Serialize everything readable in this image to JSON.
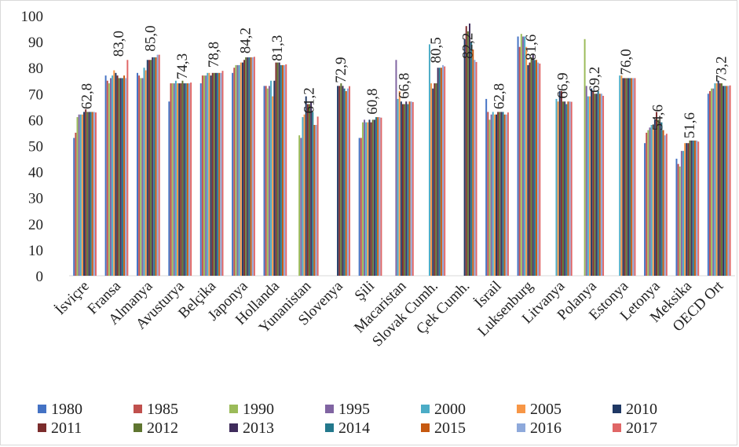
{
  "chart_data": {
    "type": "bar",
    "title": "",
    "xlabel": "",
    "ylabel": "",
    "ylim": [
      0,
      100
    ],
    "yticks": [
      0,
      10,
      20,
      30,
      40,
      50,
      60,
      70,
      80,
      90,
      100
    ],
    "grid": false,
    "legend_position": "bottom",
    "categories": [
      "İsviçre",
      "Fransa",
      "Almanya",
      "Avusturya",
      "Belçika",
      "Japonya",
      "Hollanda",
      "Yunanistan",
      "Slovenya",
      "Şili",
      "Macaristan",
      "Slovak Cumh.",
      "Çek Cumh.",
      "İsrail",
      "Luksenburg",
      "Litvanya",
      "Polanya",
      "Estonya",
      "Letonya",
      "Meksika",
      "OECD Ort"
    ],
    "data_labels": [
      "62,8",
      "83,0",
      "85,0",
      "74,3",
      "78,8",
      "84,2",
      "81,3",
      "61,2",
      "72,9",
      "60,8",
      "66,8",
      "80,5",
      "82,2",
      "62,8",
      "81,6",
      "66,9",
      "69,2",
      "76,0",
      "54,6",
      "51,6",
      "73,2"
    ],
    "series": [
      {
        "name": "1980",
        "color": "#4472C4",
        "values": [
          53,
          77,
          78,
          67,
          74,
          78,
          73,
          null,
          null,
          53,
          null,
          null,
          null,
          68,
          92,
          null,
          null,
          null,
          51,
          45,
          70
        ]
      },
      {
        "name": "1985",
        "color": "#C0504D",
        "values": [
          55,
          75,
          77,
          74,
          77,
          80,
          73,
          null,
          null,
          53,
          null,
          null,
          null,
          63,
          88,
          null,
          null,
          null,
          55,
          43,
          71
        ]
      },
      {
        "name": "1990",
        "color": "#9BBB59",
        "values": [
          61,
          74,
          76,
          74,
          77,
          81,
          72,
          54,
          null,
          59,
          null,
          null,
          null,
          60,
          93,
          null,
          91,
          null,
          56,
          42,
          72
        ]
      },
      {
        "name": "1995",
        "color": "#8064A2",
        "values": [
          62,
          76,
          76,
          74,
          77,
          81,
          73,
          53,
          null,
          60,
          83,
          null,
          null,
          62,
          92,
          null,
          73,
          null,
          57,
          48,
          72
        ]
      },
      {
        "name": "2000",
        "color": "#4BACC6",
        "values": [
          62,
          77,
          80,
          75,
          78,
          81,
          75,
          61,
          null,
          59,
          68,
          89,
          null,
          63,
          92,
          68,
          69,
          77,
          58,
          48,
          74
        ]
      },
      {
        "name": "2005",
        "color": "#F79646",
        "values": [
          62,
          79,
          79,
          74,
          78,
          82,
          69,
          62,
          null,
          59,
          71,
          74,
          null,
          62,
          88,
          67,
          69,
          77,
          58,
          51,
          74
        ]
      },
      {
        "name": "2010",
        "color": "#1F3864",
        "values": [
          63,
          78,
          83,
          74,
          77,
          82,
          75,
          69,
          73,
          60,
          67,
          72,
          91,
          62,
          81,
          71,
          72,
          76,
          60,
          51,
          75
        ]
      },
      {
        "name": "2011",
        "color": "#7B2C2C",
        "values": [
          64,
          77,
          83,
          74,
          78,
          83,
          82,
          66,
          73,
          59,
          66,
          74,
          96,
          63,
          82,
          71,
          71,
          76,
          63,
          51,
          74
        ]
      },
      {
        "name": "2012",
        "color": "#5F7530",
        "values": [
          63,
          76,
          83,
          75,
          78,
          84,
          82,
          66,
          74,
          60,
          66,
          74,
          94,
          63,
          84,
          67,
          70,
          76,
          60,
          52,
          74
        ]
      },
      {
        "name": "2013",
        "color": "#3F2C5C",
        "values": [
          63,
          76,
          84,
          74,
          78,
          84,
          82,
          67,
          73,
          60,
          67,
          80,
          97,
          63,
          85,
          67,
          70,
          76,
          59,
          52,
          73
        ]
      },
      {
        "name": "2014",
        "color": "#23788C",
        "values": [
          63,
          76,
          84,
          74,
          78,
          84,
          81,
          63,
          72,
          61,
          66,
          80,
          90,
          63,
          83,
          66,
          71,
          76,
          59,
          52,
          73
        ]
      },
      {
        "name": "2015",
        "color": "#C65911",
        "values": [
          63,
          77,
          84,
          74,
          78,
          84,
          81,
          58,
          71,
          61,
          67,
          80,
          87,
          62,
          83,
          67,
          70,
          76,
          56,
          52,
          73
        ]
      },
      {
        "name": "2016",
        "color": "#8EA9DB",
        "values": [
          63,
          76,
          85,
          74,
          78,
          84,
          81,
          58,
          72,
          61,
          67,
          81,
          83,
          62,
          82,
          67,
          70,
          76,
          54,
          52,
          73
        ]
      },
      {
        "name": "2017",
        "color": "#E06666",
        "values": [
          62.8,
          83.0,
          85.0,
          74.3,
          78.8,
          84.2,
          81.3,
          61.2,
          72.9,
          60.8,
          66.8,
          80.5,
          82.2,
          62.8,
          81.6,
          66.9,
          69.2,
          76.0,
          54.6,
          51.6,
          73.2
        ]
      }
    ]
  }
}
